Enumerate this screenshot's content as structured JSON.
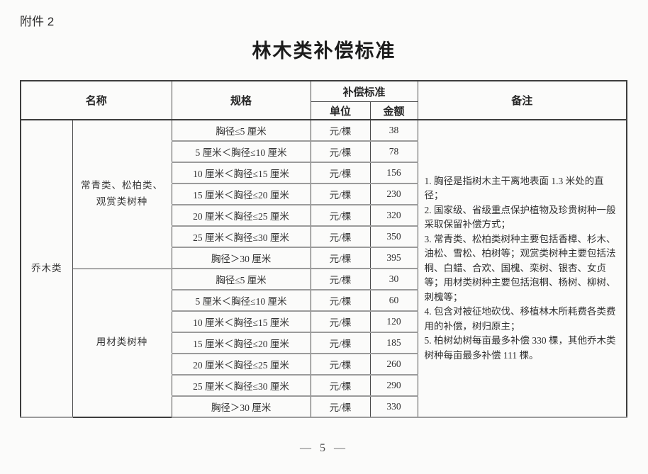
{
  "page": {
    "attachment_label": "附件 2",
    "title": "林木类补偿标准",
    "footer_page_number": "— 5 —"
  },
  "table": {
    "headers": {
      "name": "名称",
      "spec": "规格",
      "standard": "补偿标准",
      "unit": "单位",
      "amount": "金额",
      "remarks": "备注"
    },
    "category": "乔木类",
    "groups": [
      {
        "name": "常青类、松柏类、观赏类树种",
        "rows": [
          {
            "spec": "胸径≤5 厘米",
            "unit": "元/棵",
            "amount": "38"
          },
          {
            "spec": "5 厘米＜胸径≤10 厘米",
            "unit": "元/棵",
            "amount": "78"
          },
          {
            "spec": "10 厘米＜胸径≤15 厘米",
            "unit": "元/棵",
            "amount": "156"
          },
          {
            "spec": "15 厘米＜胸径≤20 厘米",
            "unit": "元/棵",
            "amount": "230"
          },
          {
            "spec": "20 厘米＜胸径≤25 厘米",
            "unit": "元/棵",
            "amount": "320"
          },
          {
            "spec": "25 厘米＜胸径≤30 厘米",
            "unit": "元/棵",
            "amount": "350"
          },
          {
            "spec": "胸径＞30 厘米",
            "unit": "元/棵",
            "amount": "395"
          }
        ]
      },
      {
        "name": "用材类树种",
        "rows": [
          {
            "spec": "胸径≤5 厘米",
            "unit": "元/棵",
            "amount": "30"
          },
          {
            "spec": "5 厘米＜胸径≤10 厘米",
            "unit": "元/棵",
            "amount": "60"
          },
          {
            "spec": "10 厘米＜胸径≤15 厘米",
            "unit": "元/棵",
            "amount": "120"
          },
          {
            "spec": "15 厘米＜胸径≤20 厘米",
            "unit": "元/棵",
            "amount": "185"
          },
          {
            "spec": "20 厘米＜胸径≤25 厘米",
            "unit": "元/棵",
            "amount": "260"
          },
          {
            "spec": "25 厘米＜胸径≤30 厘米",
            "unit": "元/棵",
            "amount": "290"
          },
          {
            "spec": "胸径＞30 厘米",
            "unit": "元/棵",
            "amount": "330"
          }
        ]
      }
    ],
    "remarks": [
      "1. 胸径是指树木主干离地表面 1.3 米处的直径；",
      "2. 国家级、省级重点保护植物及珍贵树种一般采取保留补偿方式；",
      "3. 常青类、松柏类树种主要包括香樟、杉木、油松、雪松、柏树等；观赏类树种主要包括法桐、白蜡、合欢、国槐、栾树、银杏、女贞等；用材类树种主要包括泡桐、杨树、柳树、刺槐等；",
      "4. 包含对被征地砍伐、移植林木所耗费各类费用的补偿，树归原主；",
      "5. 柏树幼树每亩最多补偿 330 棵，其他乔木类树种每亩最多补偿 111 棵。"
    ]
  }
}
